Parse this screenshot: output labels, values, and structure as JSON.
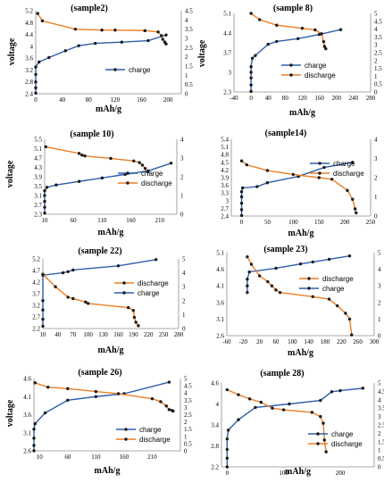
{
  "figure": {
    "charts": [
      {
        "title": "(sample2)",
        "xlabel": "mAh/g",
        "ylabel": "voltage",
        "xticks": [
          "0",
          "40",
          "80",
          "120",
          "160",
          "200"
        ],
        "yticks_left": [
          "2.4",
          "2.8",
          "3.2",
          "3.6",
          "4",
          "4.4",
          "4.8",
          "5.2"
        ],
        "yticks_right": [
          "0",
          "0.5",
          "1",
          "1.5",
          "2",
          "2.5",
          "3",
          "3.5",
          "4",
          "4.5"
        ]
      },
      {
        "title": "(sample 8)",
        "xlabel": "mAh/g",
        "ylabel": "voltage",
        "xticks": [
          "-40",
          "0",
          "40",
          "80",
          "120",
          "160",
          "200",
          "240",
          "280"
        ],
        "yticks_left": [
          "2.3",
          "3",
          "3.7",
          "4.4",
          "5.1"
        ],
        "yticks_right": [
          "0",
          "0.5",
          "1",
          "1.5",
          "2",
          "2.5",
          "3",
          "3.5",
          "4",
          "4.5",
          "5"
        ]
      },
      {
        "title": "(sample 10)",
        "xlabel": "mAh/g",
        "ylabel": "voltage",
        "xticks": [
          "10",
          "60",
          "110",
          "160",
          "210"
        ],
        "yticks_left": [
          "2.3",
          "2.7",
          "3.1",
          "3.5",
          "3.9",
          "4.3",
          "4.7",
          "5.1",
          "5.5"
        ],
        "yticks_right": [
          "0",
          "1",
          "2",
          "3",
          "4"
        ]
      },
      {
        "title": "(sample14)",
        "xlabel": "mAh/g",
        "ylabel": "",
        "xticks": [
          "0",
          "50",
          "100",
          "150",
          "200",
          "250"
        ],
        "yticks_left": [
          "2.4",
          "2.7",
          "3",
          "3.3",
          "3.6",
          "3.9",
          "4.2",
          "4.5",
          "4.8",
          "5.1",
          "5.4"
        ],
        "yticks_right": [
          "0",
          "1",
          "2",
          "3",
          "4"
        ]
      },
      {
        "title": "(sample 22)",
        "xlabel": "mAh/g",
        "ylabel": "",
        "xticks": [
          "10",
          "40",
          "70",
          "100",
          "130",
          "160",
          "190",
          "220",
          "250",
          "280"
        ],
        "yticks_left": [
          "2.2",
          "2.7",
          "3.2",
          "3.7",
          "4.2",
          "4.7",
          "5.2"
        ],
        "yticks_right": [
          "0",
          "1",
          "2",
          "3",
          "4",
          "5"
        ]
      },
      {
        "title": "(sample 23)",
        "xlabel": "mAh/g",
        "ylabel": "",
        "xticks": [
          "-60",
          "-20",
          "20",
          "60",
          "100",
          "140",
          "180",
          "220",
          "260",
          "300"
        ],
        "yticks_left": [
          "2.6",
          "3.1",
          "3.6",
          "4.1",
          "4.6",
          "5.1"
        ],
        "yticks_right": [
          "0",
          "1",
          "2",
          "3",
          "4",
          "5"
        ]
      },
      {
        "title": "(sample 26)",
        "xlabel": "mAh/g",
        "ylabel": "voltage",
        "xticks": [
          "10",
          "60",
          "110",
          "160",
          "210"
        ],
        "yticks_left": [
          "2.6",
          "3.1",
          "3.6",
          "4.1",
          "4.6"
        ],
        "yticks_right": [
          "0",
          "0.5",
          "1",
          "1.5",
          "2",
          "2.5",
          "3",
          "3.5",
          "4",
          "4.5",
          "5"
        ]
      },
      {
        "title": "(sample 28)",
        "xlabel": "mAh/g",
        "ylabel": "",
        "xticks": [
          "0",
          "100",
          "200"
        ],
        "yticks_left": [
          "2.2",
          "2.8",
          "3.4",
          "4",
          "4.6"
        ],
        "yticks_right": [
          "0",
          "0.5",
          "1",
          "1.5",
          "2",
          "2.5",
          "3",
          "3.5",
          "4",
          "4.5",
          "5"
        ]
      }
    ]
  },
  "colors": {
    "charge": "#2f5fad",
    "discharge": "#ec7d22",
    "marker": "#1a1a1a",
    "axis": "#8c8c8c"
  },
  "chart_data": [
    {
      "type": "line",
      "title": "(sample2)",
      "xlabel": "mAh/g",
      "ylabel": "voltage",
      "xlim": [
        0,
        220
      ],
      "ylim": [
        2.4,
        5.2
      ],
      "y2lim": [
        0,
        4.5
      ],
      "series": [
        {
          "name": "charge",
          "axis": "left",
          "x": [
            0,
            0,
            0,
            0,
            0,
            5,
            20,
            45,
            65,
            90,
            130,
            170,
            197
          ],
          "y": [
            2.42,
            2.6,
            2.8,
            3.05,
            3.3,
            3.47,
            3.62,
            3.85,
            4.02,
            4.1,
            4.14,
            4.19,
            4.38
          ]
        },
        {
          "name": "discharge",
          "axis": "right",
          "x": [
            3,
            10,
            60,
            100,
            120,
            165,
            185,
            190,
            192,
            195,
            197
          ],
          "y": [
            4.35,
            3.95,
            3.5,
            3.45,
            3.45,
            3.42,
            3.35,
            3.15,
            2.95,
            2.8,
            2.7
          ]
        }
      ],
      "legend": [
        "charge"
      ],
      "legend_position": "lower-right"
    },
    {
      "type": "line",
      "title": "(sample 8)",
      "xlabel": "mAh/g",
      "ylabel": "voltage",
      "xlim": [
        -40,
        280
      ],
      "ylim": [
        2.3,
        5.1
      ],
      "y2lim": [
        0,
        5
      ],
      "series": [
        {
          "name": "charge",
          "axis": "left",
          "x": [
            0,
            0,
            0,
            0,
            0,
            3,
            10,
            40,
            60,
            110,
            160,
            210
          ],
          "y": [
            2.32,
            2.55,
            2.8,
            3.0,
            3.2,
            3.5,
            3.6,
            4.0,
            4.1,
            4.2,
            4.35,
            4.52
          ]
        },
        {
          "name": "discharge",
          "axis": "right",
          "x": [
            0,
            20,
            60,
            120,
            150,
            165,
            170,
            172,
            175
          ],
          "y": [
            5,
            4.6,
            4.25,
            4.05,
            3.95,
            3.7,
            3.2,
            2.9,
            2.75
          ]
        }
      ],
      "legend": [
        "charge",
        "discharge"
      ],
      "legend_position": "lower-right"
    },
    {
      "type": "line",
      "title": "(sample 10)",
      "xlabel": "mAh/g",
      "ylabel": "voltage",
      "xlim": [
        10,
        240
      ],
      "ylim": [
        2.3,
        5.5
      ],
      "y2lim": [
        0,
        4.5
      ],
      "series": [
        {
          "name": "charge",
          "axis": "left",
          "x": [
            10,
            10,
            10,
            10,
            10,
            14,
            30,
            70,
            110,
            150,
            190,
            230
          ],
          "y": [
            2.35,
            2.6,
            2.85,
            3.1,
            3.3,
            3.45,
            3.55,
            3.7,
            3.85,
            4.0,
            4.15,
            4.48
          ]
        },
        {
          "name": "discharge",
          "axis": "right",
          "x": [
            12,
            70,
            75,
            80,
            125,
            165,
            175,
            180,
            185,
            190
          ],
          "y": [
            4.05,
            3.65,
            3.55,
            3.5,
            3.35,
            3.2,
            3.1,
            2.95,
            2.75,
            2.55
          ]
        }
      ],
      "legend": [
        "charge",
        "discharge"
      ],
      "legend_position": "lower-right"
    },
    {
      "type": "line",
      "title": "(sample14)",
      "xlabel": "mAh/g",
      "ylabel": "",
      "xlim": [
        -20,
        250
      ],
      "ylim": [
        2.4,
        5.4
      ],
      "y2lim": [
        0,
        4.8
      ],
      "series": [
        {
          "name": "charge",
          "axis": "left",
          "x": [
            0,
            0,
            0,
            0,
            0,
            2,
            30,
            50,
            110,
            160,
            215
          ],
          "y": [
            2.42,
            2.65,
            2.9,
            3.15,
            3.35,
            3.5,
            3.55,
            3.7,
            3.95,
            4.3,
            4.5
          ]
        },
        {
          "name": "discharge",
          "axis": "right",
          "x": [
            0,
            10,
            50,
            100,
            150,
            175,
            205,
            215,
            220,
            222
          ],
          "y": [
            3.45,
            3.2,
            2.85,
            2.6,
            2.4,
            2.3,
            1.6,
            1.05,
            0.45,
            0.2
          ]
        }
      ],
      "legend": [
        "charge",
        "discharge"
      ],
      "legend_position": "top-right"
    },
    {
      "type": "line",
      "title": "(sample 22)",
      "xlabel": "mAh/g",
      "ylabel": "",
      "xlim": [
        10,
        280
      ],
      "ylim": [
        2.2,
        5.2
      ],
      "y2lim": [
        0,
        5
      ],
      "series": [
        {
          "name": "charge",
          "axis": "left",
          "x": [
            10,
            10,
            10,
            10,
            10,
            50,
            60,
            70,
            160,
            235
          ],
          "y": [
            2.3,
            2.6,
            3.0,
            3.4,
            4.5,
            4.6,
            4.65,
            4.72,
            4.9,
            5.17
          ]
        },
        {
          "name": "discharge",
          "axis": "right",
          "x": [
            10,
            35,
            60,
            70,
            95,
            100,
            180,
            190,
            192,
            195,
            200
          ],
          "y": [
            3.9,
            3.0,
            2.25,
            2.15,
            1.9,
            1.8,
            1.5,
            1.3,
            0.8,
            0.45,
            0.2
          ]
        }
      ],
      "legend": [
        "discharge",
        "charge"
      ],
      "legend_position": "top-right"
    },
    {
      "type": "line",
      "title": "(sample 23)",
      "xlabel": "mAh/g",
      "ylabel": "",
      "xlim": [
        -60,
        300
      ],
      "ylim": [
        2.6,
        5.1
      ],
      "y2lim": [
        0,
        5
      ],
      "series": [
        {
          "name": "charge",
          "axis": "left",
          "x": [
            -10,
            -10,
            -10,
            -5,
            60,
            120,
            150,
            190,
            240
          ],
          "y": [
            3.9,
            4.1,
            4.3,
            4.52,
            4.63,
            4.76,
            4.82,
            4.9,
            5.0
          ]
        },
        {
          "name": "discharge",
          "axis": "right",
          "x": [
            -10,
            0,
            20,
            40,
            50,
            60,
            70,
            150,
            190,
            210,
            230,
            240,
            245
          ],
          "y": [
            4.75,
            4.3,
            3.6,
            3.25,
            3.0,
            2.75,
            2.6,
            2.35,
            2.2,
            1.8,
            1.35,
            1.0,
            0.05
          ]
        }
      ],
      "legend": [
        "discharge",
        "charge"
      ],
      "legend_position": "top-right"
    },
    {
      "type": "line",
      "title": "(sample 26)",
      "xlabel": "mAh/g",
      "ylabel": "voltage",
      "xlim": [
        0,
        260
      ],
      "ylim": [
        2.6,
        4.6
      ],
      "y2lim": [
        0,
        5
      ],
      "series": [
        {
          "name": "charge",
          "axis": "left",
          "x": [
            0,
            0,
            0,
            0,
            2,
            20,
            60,
            110,
            160,
            240
          ],
          "y": [
            2.6,
            2.75,
            2.95,
            3.2,
            3.35,
            3.65,
            4.0,
            4.1,
            4.18,
            4.5
          ]
        },
        {
          "name": "discharge",
          "axis": "right",
          "x": [
            2,
            25,
            60,
            110,
            150,
            210,
            225,
            235,
            240,
            245,
            247
          ],
          "y": [
            4.7,
            4.4,
            4.3,
            4.1,
            3.95,
            3.6,
            3.4,
            3.1,
            2.85,
            2.8,
            2.75
          ]
        }
      ],
      "legend": [
        "charge",
        "discharge"
      ],
      "legend_position": "lower-right"
    },
    {
      "type": "line",
      "title": "(sample 28)",
      "xlabel": "mAh/g",
      "ylabel": "",
      "xlim": [
        -10,
        260
      ],
      "ylim": [
        2.2,
        4.6
      ],
      "y2lim": [
        0,
        5
      ],
      "series": [
        {
          "name": "charge",
          "axis": "left",
          "x": [
            0,
            0,
            0,
            0,
            2,
            20,
            50,
            110,
            165,
            185,
            200,
            240
          ],
          "y": [
            2.2,
            2.45,
            2.7,
            3.0,
            3.25,
            3.55,
            3.9,
            4.0,
            4.1,
            4.35,
            4.38,
            4.45
          ]
        },
        {
          "name": "discharge",
          "axis": "right",
          "x": [
            0,
            20,
            40,
            60,
            80,
            100,
            150,
            165,
            170,
            172,
            175
          ],
          "y": [
            4.6,
            4.3,
            4.05,
            3.85,
            3.5,
            3.4,
            3.25,
            3.0,
            2.6,
            1.6,
            0.9
          ]
        }
      ],
      "legend": [
        "charge",
        "discharge"
      ],
      "legend_position": "lower-right"
    }
  ]
}
